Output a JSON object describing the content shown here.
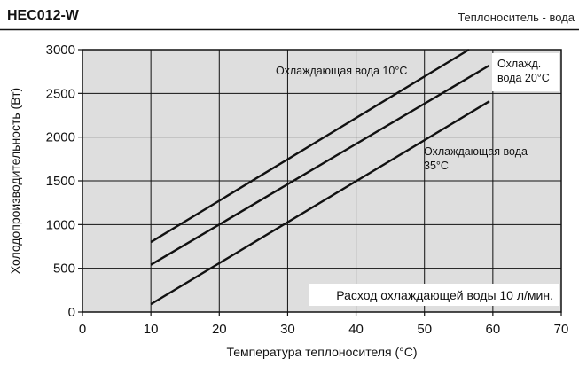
{
  "header": {
    "model": "HEC012-W",
    "heat_carrier": "Теплоноситель - вода"
  },
  "chart_data": {
    "type": "line",
    "title": "",
    "xlabel": "Температура теплоносителя (°C)",
    "ylabel": "Холодопроизводительность (Вт)",
    "xlim": [
      0,
      70
    ],
    "ylim": [
      0,
      3000
    ],
    "xticks": [
      0,
      10,
      20,
      30,
      40,
      50,
      60,
      70
    ],
    "yticks": [
      0,
      500,
      1000,
      1500,
      2000,
      2500,
      3000
    ],
    "grid": true,
    "series": [
      {
        "label_lines": [
          "Охлаждающая вода 10°C"
        ],
        "x": [
          10,
          56.5
        ],
        "y": [
          800,
          3000
        ]
      },
      {
        "label_lines": [
          "Охлажд.",
          "вода 20°C"
        ],
        "x": [
          10,
          59.5
        ],
        "y": [
          540,
          2820
        ]
      },
      {
        "label_lines": [
          "Охлаждающая вода",
          "35°C"
        ],
        "x": [
          10,
          59.5
        ],
        "y": [
          90,
          2410
        ]
      }
    ],
    "annotation": "Расход охлаждающей воды 10 л/мин."
  }
}
